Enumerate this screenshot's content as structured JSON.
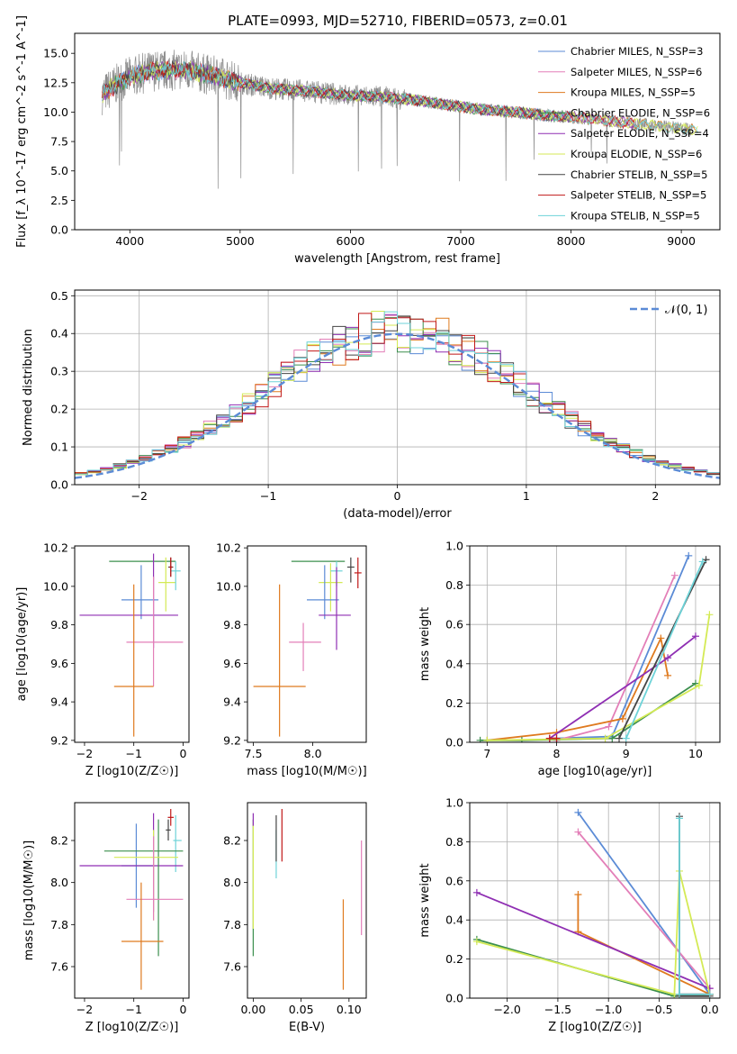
{
  "figure": {
    "title": "PLATE=0993, MJD=52710, FIBERID=0573, z=0.01"
  },
  "chart_data": [
    {
      "type": "line",
      "id": "spectrum",
      "title": "PLATE=0993, MJD=52710, FIBERID=0573, z=0.01",
      "xlabel": "wavelength [Angstrom, rest frame]",
      "ylabel": "Flux [f_λ 10^-17 erg cm^-2 s^-1 A^-1]",
      "xlim": [
        3500,
        9350
      ],
      "ylim": [
        0,
        16.7
      ],
      "xticks": [
        4000,
        5000,
        6000,
        7000,
        8000,
        9000
      ],
      "yticks": [
        0.0,
        2.5,
        5.0,
        7.5,
        10.0,
        12.5,
        15.0
      ],
      "grid": false,
      "legend_placement": "top-right",
      "continuum": {
        "x": [
          3750,
          3900,
          4000,
          4200,
          4500,
          4800,
          5000,
          5300,
          5600,
          6000,
          6300,
          6600,
          6900,
          7200,
          7500,
          7800,
          8100,
          8400,
          8700,
          9100
        ],
        "y": [
          11.5,
          12.5,
          13.0,
          13.5,
          13.6,
          13.0,
          12.5,
          12.0,
          11.8,
          11.4,
          11.3,
          11.0,
          10.6,
          10.2,
          10.0,
          9.7,
          9.5,
          9.2,
          8.9,
          8.5
        ]
      },
      "model_end": [
        8000,
        9150
      ],
      "series": [
        {
          "name": "Chabrier MILES, N_SSP=3",
          "color": "#5b8bd6"
        },
        {
          "name": "Salpeter MILES, N_SSP=6",
          "color": "#e37fb8"
        },
        {
          "name": "Kroupa MILES, N_SSP=5",
          "color": "#df7a1f"
        },
        {
          "name": "Chabrier ELODIE, N_SSP=6",
          "color": "#3c8f4e"
        },
        {
          "name": "Salpeter ELODIE, N_SSP=4",
          "color": "#8f2fb3"
        },
        {
          "name": "Kroupa ELODIE, N_SSP=6",
          "color": "#d4ea55"
        },
        {
          "name": "Chabrier STELIB, N_SSP=5",
          "color": "#444444"
        },
        {
          "name": "Salpeter STELIB, N_SSP=5",
          "color": "#c01818"
        },
        {
          "name": "Kroupa STELIB, N_SSP=5",
          "color": "#6ed3d8"
        }
      ]
    },
    {
      "type": "histogram",
      "id": "residuals",
      "xlabel": "(data-model)/error",
      "ylabel": "Normed distribution",
      "xlim": [
        -2.5,
        2.5
      ],
      "ylim": [
        0,
        0.515
      ],
      "xticks": [
        -2,
        -1,
        0,
        1,
        2
      ],
      "yticks": [
        0.0,
        0.1,
        0.2,
        0.3,
        0.4,
        0.5
      ],
      "grid": true,
      "legend": "𝒩(0, 1)",
      "legend_placement": "top-right",
      "bin_width": 0.1,
      "reference": {
        "name": "𝒩(0, 1)",
        "mean": 0,
        "sigma": 1,
        "color": "#5b8bd6"
      },
      "series_colors": [
        "#5b8bd6",
        "#e37fb8",
        "#df7a1f",
        "#3c8f4e",
        "#8f2fb3",
        "#d4ea55",
        "#444444",
        "#c01818",
        "#6ed3d8"
      ]
    },
    {
      "type": "errorbar",
      "id": "age-vs-Z",
      "xlabel": "Z [log10(Z/Z☉)]",
      "ylabel": "age  [log10(age/yr)]",
      "xlim": [
        -2.2,
        0.12
      ],
      "ylim": [
        9.19,
        10.21
      ],
      "xticks": [
        -2,
        -1,
        0
      ],
      "yticks": [
        9.2,
        9.4,
        9.6,
        9.8,
        10.0,
        10.2
      ],
      "points": [
        {
          "color": "#3c8f4e",
          "x": -0.7,
          "xerr": [
            0.8,
            0.55
          ],
          "y": 10.13,
          "yerr": [
            0,
            0
          ]
        },
        {
          "color": "#d4ea55",
          "x": -0.35,
          "xerr": [
            0.15,
            0.2
          ],
          "y": 10.02,
          "yerr": [
            0.15,
            0.13
          ]
        },
        {
          "color": "#6ed3d8",
          "x": -0.15,
          "xerr": [
            0.1,
            0.1
          ],
          "y": 10.08,
          "yerr": [
            0.1,
            0.05
          ]
        },
        {
          "color": "#444444",
          "x": -0.25,
          "xerr": [
            0.05,
            0.05
          ],
          "y": 10.1,
          "yerr": [
            0.05,
            0.05
          ]
        },
        {
          "color": "#c01818",
          "x": -0.25,
          "xerr": [
            0.03,
            0.03
          ],
          "y": 10.1,
          "yerr": [
            0.05,
            0.05
          ]
        },
        {
          "color": "#5b8bd6",
          "x": -0.85,
          "xerr": [
            0.4,
            0.35
          ],
          "y": 9.93,
          "yerr": [
            0.1,
            0.18
          ]
        },
        {
          "color": "#8f2fb3",
          "x": -0.6,
          "xerr": [
            1.5,
            0.5
          ],
          "y": 9.85,
          "yerr": [
            0.17,
            0.32
          ]
        },
        {
          "color": "#e37fb8",
          "x": -0.6,
          "xerr": [
            0.55,
            0.6
          ],
          "y": 9.71,
          "yerr": [
            0.23,
            0.34
          ]
        },
        {
          "color": "#df7a1f",
          "x": -1.0,
          "xerr": [
            0.4,
            0.4
          ],
          "y": 9.48,
          "yerr": [
            0.26,
            0.53
          ]
        }
      ]
    },
    {
      "type": "errorbar",
      "id": "age-vs-mass",
      "xlabel": "mass [log10(M/M☉)]",
      "ylabel": "",
      "xlim": [
        7.45,
        8.45
      ],
      "ylim": [
        9.19,
        10.21
      ],
      "xticks": [
        7.5,
        8.0
      ],
      "yticks": [
        9.2,
        9.4,
        9.6,
        9.8,
        10.0,
        10.2
      ],
      "points": [
        {
          "color": "#3c8f4e",
          "x": 8.12,
          "xerr": [
            0.3,
            0.15
          ],
          "y": 10.13,
          "yerr": [
            0,
            0
          ]
        },
        {
          "color": "#d4ea55",
          "x": 8.15,
          "xerr": [
            0.1,
            0.1
          ],
          "y": 10.02,
          "yerr": [
            0.15,
            0.1
          ]
        },
        {
          "color": "#6ed3d8",
          "x": 8.2,
          "xerr": [
            0.05,
            0.05
          ],
          "y": 10.08,
          "yerr": [
            0.08,
            0.05
          ]
        },
        {
          "color": "#444444",
          "x": 8.32,
          "xerr": [
            0.03,
            0.03
          ],
          "y": 10.1,
          "yerr": [
            0.08,
            0.05
          ]
        },
        {
          "color": "#c01818",
          "x": 8.38,
          "xerr": [
            0.03,
            0.03
          ],
          "y": 10.07,
          "yerr": [
            0.08,
            0.08
          ]
        },
        {
          "color": "#5b8bd6",
          "x": 8.1,
          "xerr": [
            0.15,
            0.12
          ],
          "y": 9.93,
          "yerr": [
            0.1,
            0.18
          ]
        },
        {
          "color": "#8f2fb3",
          "x": 8.2,
          "xerr": [
            0.15,
            0.12
          ],
          "y": 9.85,
          "yerr": [
            0.18,
            0.25
          ]
        },
        {
          "color": "#e37fb8",
          "x": 7.92,
          "xerr": [
            0.12,
            0.15
          ],
          "y": 9.71,
          "yerr": [
            0.15,
            0.1
          ]
        },
        {
          "color": "#df7a1f",
          "x": 7.72,
          "xerr": [
            0.22,
            0.22
          ],
          "y": 9.48,
          "yerr": [
            0.26,
            0.53
          ]
        }
      ]
    },
    {
      "type": "line",
      "id": "weight-vs-age",
      "xlabel": "age  [log10(age/yr)]",
      "ylabel": "mass weight",
      "xlim": [
        6.75,
        10.35
      ],
      "ylim": [
        0,
        1.0
      ],
      "xticks": [
        7,
        8,
        9,
        10
      ],
      "yticks": [
        0.0,
        0.2,
        0.4,
        0.6,
        0.8,
        1.0
      ],
      "grid": true,
      "series": [
        {
          "color": "#5b8bd6",
          "x": [
            8.0,
            8.8,
            9.9
          ],
          "y": [
            0.02,
            0.03,
            0.95
          ]
        },
        {
          "color": "#e37fb8",
          "x": [
            8.0,
            8.75,
            9.7
          ],
          "y": [
            0.01,
            0.08,
            0.85
          ]
        },
        {
          "color": "#df7a1f",
          "x": [
            7.0,
            8.0,
            8.95,
            9.5,
            9.6
          ],
          "y": [
            0.01,
            0.05,
            0.12,
            0.53,
            0.34
          ]
        },
        {
          "color": "#3c8f4e",
          "x": [
            6.9,
            7.5,
            8.8,
            10.0
          ],
          "y": [
            0.01,
            0.01,
            0.02,
            0.3
          ]
        },
        {
          "color": "#8f2fb3",
          "x": [
            7.9,
            9.6,
            10.0
          ],
          "y": [
            0.02,
            0.43,
            0.54
          ]
        },
        {
          "color": "#d4ea55",
          "x": [
            7.0,
            8.7,
            10.05,
            10.2
          ],
          "y": [
            0.01,
            0.02,
            0.29,
            0.65
          ]
        },
        {
          "color": "#444444",
          "x": [
            8.9,
            10.15
          ],
          "y": [
            0.02,
            0.93
          ]
        },
        {
          "color": "#c01818",
          "x": [
            7.9,
            8.0
          ],
          "y": [
            0.02,
            0.02
          ]
        },
        {
          "color": "#6ed3d8",
          "x": [
            9.0,
            10.1
          ],
          "y": [
            0.02,
            0.92
          ]
        }
      ]
    },
    {
      "type": "errorbar",
      "id": "mass-vs-Z",
      "xlabel": "Z [log10(Z/Z☉)]",
      "ylabel": "mass [log10(M/M☉)]",
      "xlim": [
        -2.2,
        0.12
      ],
      "ylim": [
        7.45,
        8.38
      ],
      "xticks": [
        -2,
        -1,
        0
      ],
      "yticks": [
        7.6,
        7.8,
        8.0,
        8.2
      ],
      "points": [
        {
          "color": "#5b8bd6",
          "x": -0.95,
          "xerr": [
            0.3,
            0.35
          ],
          "y": 8.08,
          "yerr": [
            0.2,
            0.2
          ]
        },
        {
          "color": "#6ed3d8",
          "x": -0.15,
          "xerr": [
            0.05,
            0.12
          ],
          "y": 8.2,
          "yerr": [
            0.15,
            0.12
          ]
        },
        {
          "color": "#8f2fb3",
          "x": -0.6,
          "xerr": [
            1.5,
            0.6
          ],
          "y": 8.08,
          "yerr": [
            0.22,
            0.25
          ]
        },
        {
          "color": "#3c8f4e",
          "x": -0.5,
          "xerr": [
            1.1,
            0.5
          ],
          "y": 8.15,
          "yerr": [
            0.5,
            0.15
          ]
        },
        {
          "color": "#d4ea55",
          "x": -0.6,
          "xerr": [
            0.8,
            0.5
          ],
          "y": 8.12,
          "yerr": [
            0.3,
            0.13
          ]
        },
        {
          "color": "#444444",
          "x": -0.3,
          "xerr": [
            0.05,
            0.05
          ],
          "y": 8.25,
          "yerr": [
            0.05,
            0.05
          ]
        },
        {
          "color": "#c01818",
          "x": -0.25,
          "xerr": [
            0.06,
            0.06
          ],
          "y": 8.31,
          "yerr": [
            0.04,
            0.04
          ]
        },
        {
          "color": "#e37fb8",
          "x": -0.6,
          "xerr": [
            0.55,
            0.6
          ],
          "y": 7.92,
          "yerr": [
            0.1,
            0.3
          ]
        },
        {
          "color": "#df7a1f",
          "x": -0.85,
          "xerr": [
            0.4,
            0.45
          ],
          "y": 7.72,
          "yerr": [
            0.23,
            0.28
          ]
        }
      ]
    },
    {
      "type": "errorbar",
      "id": "mass-vs-ebv",
      "xlabel": "E(B-V)",
      "ylabel": "",
      "xlim": [
        -0.006,
        0.118
      ],
      "ylim": [
        7.45,
        8.38
      ],
      "xticks": [
        0.0,
        0.05,
        0.1
      ],
      "xticklabels": [
        "0.00",
        "0.05",
        "0.10"
      ],
      "yticks": [
        7.6,
        7.8,
        8.0,
        8.2
      ],
      "points": [
        {
          "color": "#3c8f4e",
          "x": 0.0,
          "xerr": [
            0,
            0
          ],
          "y": 7.95,
          "yerr": [
            0.3,
            0.35
          ]
        },
        {
          "color": "#d4ea55",
          "x": 0.0,
          "xerr": [
            0,
            0
          ],
          "y": 7.98,
          "yerr": [
            0.2,
            0.3
          ]
        },
        {
          "color": "#8f2fb3",
          "x": 0.0,
          "xerr": [
            0,
            0
          ],
          "y": 8.3,
          "yerr": [
            0.03,
            0.03
          ]
        },
        {
          "color": "#6ed3d8",
          "x": 0.024,
          "xerr": [
            0,
            0
          ],
          "y": 8.15,
          "yerr": [
            0.13,
            0.1
          ]
        },
        {
          "color": "#444444",
          "x": 0.024,
          "xerr": [
            0,
            0
          ],
          "y": 8.2,
          "yerr": [
            0.1,
            0.12
          ]
        },
        {
          "color": "#c01818",
          "x": 0.03,
          "xerr": [
            0,
            0
          ],
          "y": 8.23,
          "yerr": [
            0.13,
            0.12
          ]
        },
        {
          "color": "#df7a1f",
          "x": 0.094,
          "xerr": [
            0,
            0
          ],
          "y": 7.72,
          "yerr": [
            0.23,
            0.2
          ]
        },
        {
          "color": "#e37fb8",
          "x": 0.113,
          "xerr": [
            0,
            0
          ],
          "y": 7.97,
          "yerr": [
            0.22,
            0.23
          ]
        }
      ]
    },
    {
      "type": "line",
      "id": "weight-vs-Z",
      "xlabel": "Z [log10(Z/Z☉)]",
      "ylabel": "mass weight",
      "xlim": [
        -2.37,
        0.1
      ],
      "ylim": [
        0,
        1.0
      ],
      "xticks": [
        -2.0,
        -1.5,
        -1.0,
        -0.5,
        0.0
      ],
      "xticklabels": [
        "−2.0",
        "−1.5",
        "−1.0",
        "−0.5",
        "0.0"
      ],
      "yticks": [
        0.0,
        0.2,
        0.4,
        0.6,
        0.8,
        1.0
      ],
      "grid": true,
      "series": [
        {
          "color": "#5b8bd6",
          "x": [
            -1.3,
            0.0
          ],
          "y": [
            0.95,
            0.02
          ]
        },
        {
          "color": "#e37fb8",
          "x": [
            -1.3,
            0.0
          ],
          "y": [
            0.85,
            0.05
          ]
        },
        {
          "color": "#df7a1f",
          "x": [
            -1.3,
            -1.3,
            0.0
          ],
          "y": [
            0.53,
            0.34,
            0.02
          ]
        },
        {
          "color": "#3c8f4e",
          "x": [
            -2.3,
            -0.35,
            0.0
          ],
          "y": [
            0.3,
            0.01,
            0.02
          ]
        },
        {
          "color": "#8f2fb3",
          "x": [
            -2.3,
            0.0
          ],
          "y": [
            0.54,
            0.05
          ]
        },
        {
          "color": "#d4ea55",
          "x": [
            -2.3,
            -0.35,
            -0.3,
            0.0
          ],
          "y": [
            0.29,
            0.02,
            0.65,
            0.02
          ]
        },
        {
          "color": "#444444",
          "x": [
            -0.3,
            -0.3,
            0.0
          ],
          "y": [
            0.93,
            0.01,
            0.01
          ]
        },
        {
          "color": "#c01818",
          "x": [
            -0.3,
            0.0
          ],
          "y": [
            0.02,
            0.02
          ]
        },
        {
          "color": "#6ed3d8",
          "x": [
            -0.3,
            -0.3,
            0.0
          ],
          "y": [
            0.92,
            0.02,
            0.02
          ]
        }
      ]
    }
  ]
}
